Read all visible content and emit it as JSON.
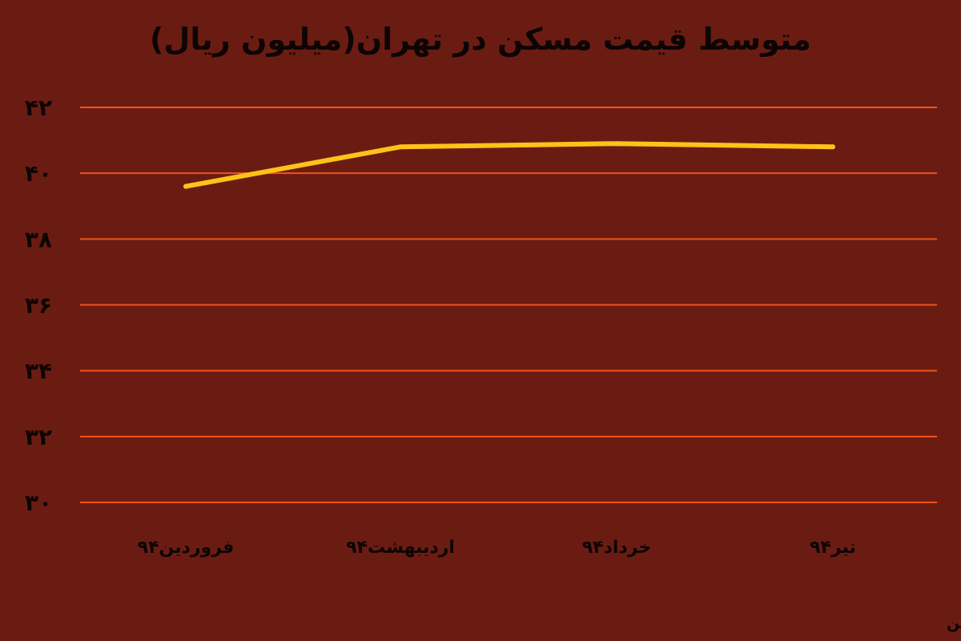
{
  "chart_data": {
    "type": "line",
    "title": "متوسط قیمت مسکن در تهران(میلیون ریال)",
    "categories": [
      "فروردین۹۴",
      "اردیبهشت۹۴",
      "خرداد۹۴",
      "تیر۹۴"
    ],
    "series": [
      {
        "values": [
          39.6,
          40.8,
          40.9,
          40.8
        ]
      }
    ],
    "yticks": [
      "۳۰",
      "۳۲",
      "۳۴",
      "۳۶",
      "۳۸",
      "۴۰",
      "۴۲"
    ],
    "ylim": [
      30,
      42
    ],
    "grid": true,
    "xlabel": "",
    "ylabel": "",
    "colors": {
      "background": "#6b1c12",
      "gridline": "#f0531c",
      "line": "#ffc21a",
      "text": "#0d0504"
    }
  },
  "source": "منبع: دفتر برنامه‌ریزی و اقتصاد مسکن"
}
